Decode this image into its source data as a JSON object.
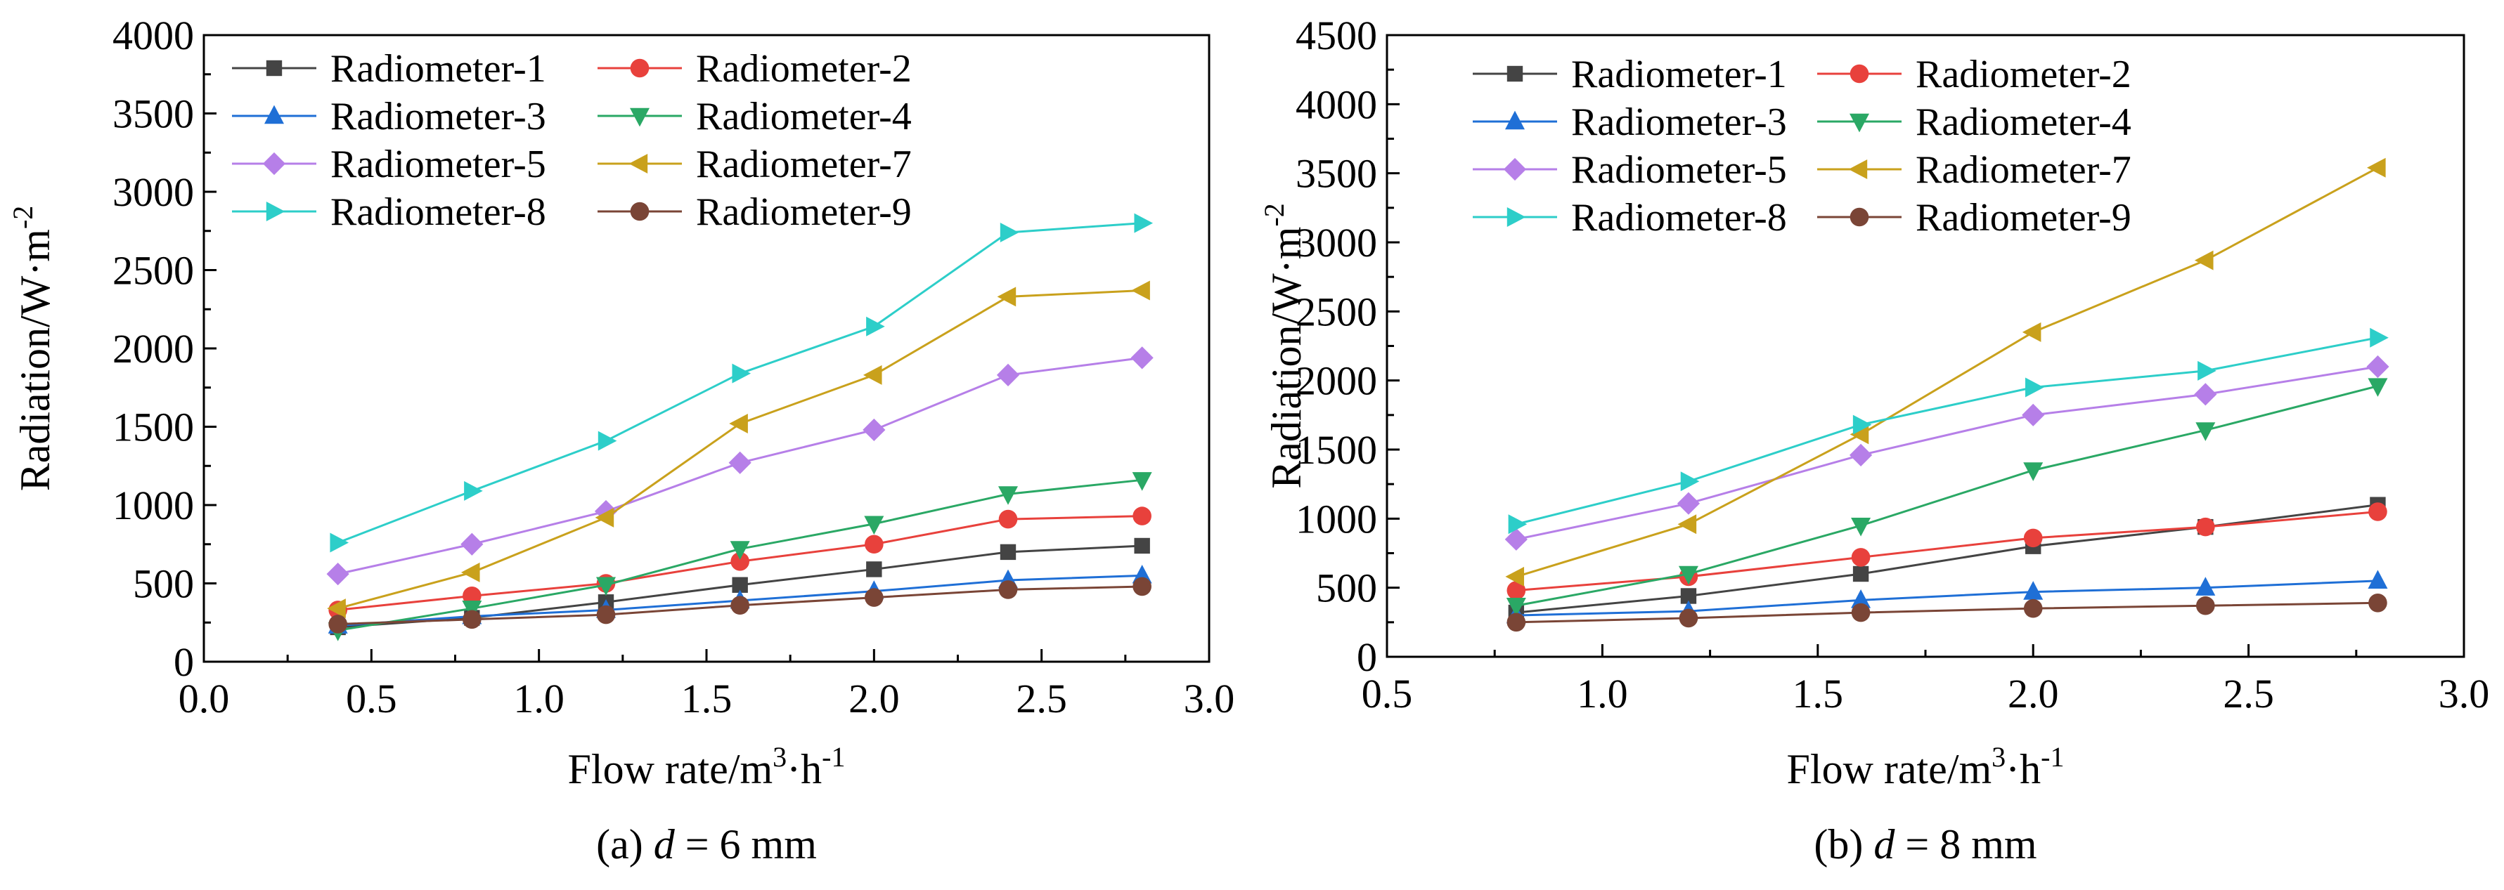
{
  "chart_data": [
    {
      "type": "line",
      "caption": {
        "letter": "(a)",
        "variable": "d",
        "rest": " = 6 mm"
      },
      "xlabel": {
        "base": "Flow rate/m",
        "sup1": "3",
        "mid": "·h",
        "sup2": "-1"
      },
      "ylabel": {
        "base": "Radiation/W·m",
        "sup": "-2"
      },
      "xlim": [
        0.0,
        3.0
      ],
      "ylim": [
        0,
        4000
      ],
      "xticks": [
        "0.0",
        "0.5",
        "1.0",
        "1.5",
        "2.0",
        "2.5",
        "3.0"
      ],
      "yticks": [
        "0",
        "500",
        "1000",
        "1500",
        "2000",
        "2500",
        "3000",
        "3500",
        "4000"
      ],
      "grid": false,
      "legend_position": "top-left",
      "x": [
        0.4,
        0.8,
        1.2,
        1.6,
        2.0,
        2.4,
        2.8
      ],
      "series": [
        {
          "name": "Radiometer-1",
          "color": "#444444",
          "marker": "square",
          "values": [
            220,
            280,
            380,
            490,
            590,
            700,
            740
          ]
        },
        {
          "name": "Radiometer-2",
          "color": "#e8413c",
          "marker": "circle",
          "values": [
            330,
            420,
            500,
            640,
            750,
            910,
            930
          ]
        },
        {
          "name": "Radiometer-3",
          "color": "#1f6fd6",
          "marker": "triangle-up",
          "values": [
            230,
            290,
            330,
            390,
            450,
            520,
            550
          ]
        },
        {
          "name": "Radiometer-4",
          "color": "#2aa865",
          "marker": "triangle-down",
          "values": [
            200,
            340,
            490,
            720,
            880,
            1070,
            1160
          ]
        },
        {
          "name": "Radiometer-5",
          "color": "#b67fe8",
          "marker": "diamond",
          "values": [
            560,
            750,
            960,
            1270,
            1480,
            1830,
            1940
          ]
        },
        {
          "name": "Radiometer-7",
          "color": "#c9a11c",
          "marker": "triangle-left",
          "values": [
            340,
            570,
            920,
            1520,
            1830,
            2330,
            2370
          ]
        },
        {
          "name": "Radiometer-8",
          "color": "#2dcec9",
          "marker": "triangle-right",
          "values": [
            760,
            1090,
            1410,
            1840,
            2140,
            2740,
            2800
          ]
        },
        {
          "name": "Radiometer-9",
          "color": "#7a4536",
          "marker": "circle",
          "values": [
            240,
            270,
            300,
            360,
            410,
            460,
            480
          ]
        }
      ]
    },
    {
      "type": "line",
      "caption": {
        "letter": "(b)",
        "variable": "d",
        "rest": " = 8 mm"
      },
      "xlabel": {
        "base": "Flow rate/m",
        "sup1": "3",
        "mid": "·h",
        "sup2": "-1"
      },
      "ylabel": {
        "base": "Radiation/W·m",
        "sup": "-2"
      },
      "xlim": [
        0.5,
        3.0
      ],
      "ylim": [
        0,
        4500
      ],
      "xticks": [
        "0.5",
        "1.0",
        "1.5",
        "2.0",
        "2.5",
        "3.0"
      ],
      "yticks": [
        "0",
        "500",
        "1000",
        "1500",
        "2000",
        "2500",
        "3000",
        "3500",
        "4000",
        "4500"
      ],
      "grid": false,
      "legend_position": "top-left",
      "x": [
        0.8,
        1.2,
        1.6,
        2.0,
        2.4,
        2.8
      ],
      "series": [
        {
          "name": "Radiometer-1",
          "color": "#444444",
          "marker": "square",
          "values": [
            320,
            440,
            600,
            800,
            940,
            1100
          ]
        },
        {
          "name": "Radiometer-2",
          "color": "#e8413c",
          "marker": "circle",
          "values": [
            480,
            580,
            720,
            860,
            940,
            1050
          ]
        },
        {
          "name": "Radiometer-3",
          "color": "#1f6fd6",
          "marker": "triangle-up",
          "values": [
            300,
            330,
            410,
            470,
            500,
            550
          ]
        },
        {
          "name": "Radiometer-4",
          "color": "#2aa865",
          "marker": "triangle-down",
          "values": [
            370,
            600,
            950,
            1350,
            1640,
            1960
          ]
        },
        {
          "name": "Radiometer-5",
          "color": "#b67fe8",
          "marker": "diamond",
          "values": [
            850,
            1110,
            1460,
            1750,
            1900,
            2100
          ]
        },
        {
          "name": "Radiometer-7",
          "color": "#c9a11c",
          "marker": "triangle-left",
          "values": [
            580,
            960,
            1610,
            2350,
            2870,
            3540
          ]
        },
        {
          "name": "Radiometer-8",
          "color": "#2dcec9",
          "marker": "triangle-right",
          "values": [
            960,
            1270,
            1680,
            1950,
            2070,
            2310
          ]
        },
        {
          "name": "Radiometer-9",
          "color": "#7a4536",
          "marker": "circle",
          "values": [
            250,
            280,
            320,
            350,
            370,
            390
          ]
        }
      ]
    }
  ]
}
